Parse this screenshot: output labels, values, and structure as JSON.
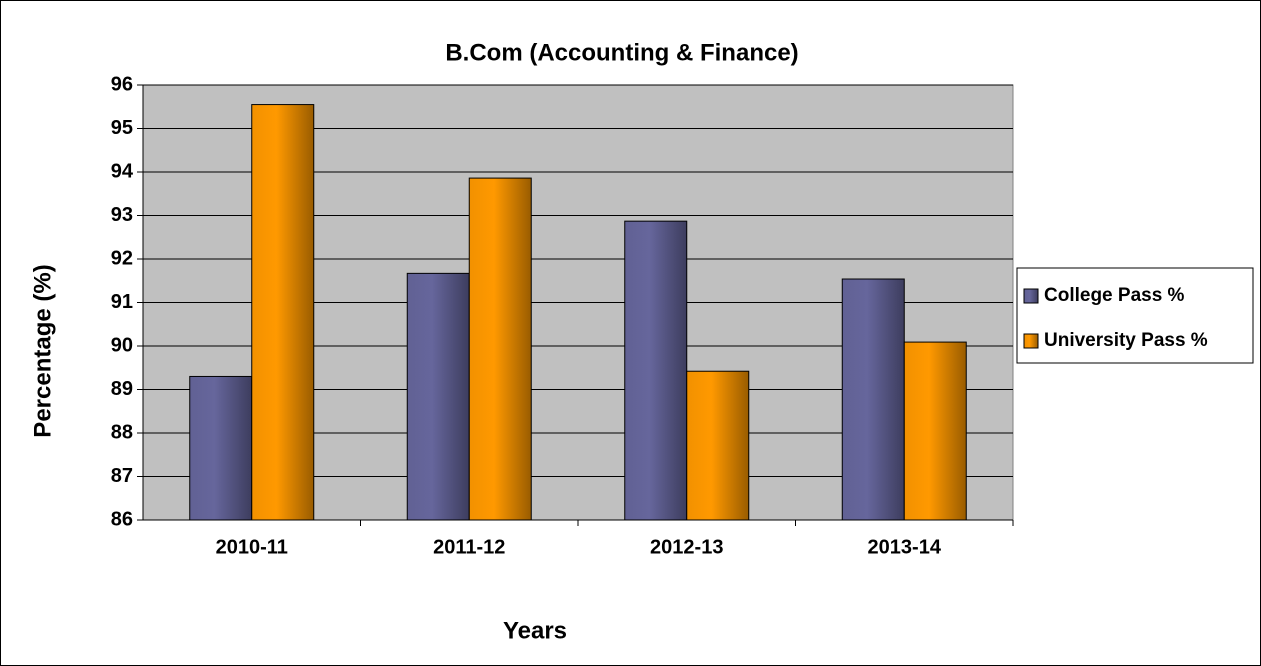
{
  "chart_data": {
    "type": "bar",
    "title": "B.Com (Accounting & Finance)",
    "x_label": "Years",
    "y_label": "Percentage (%)",
    "categories": [
      "2010-11",
      "2011-12",
      "2012-13",
      "2013-14"
    ],
    "series": [
      {
        "name": "College Pass %",
        "color": "#66669c",
        "values": [
          89.3,
          91.67,
          92.87,
          91.54
        ]
      },
      {
        "name": "University Pass %",
        "color": "#ff9900",
        "values": [
          95.55,
          93.86,
          89.42,
          90.09
        ]
      }
    ],
    "ylim": [
      86,
      96
    ],
    "yticks": [
      86,
      87,
      88,
      89,
      90,
      91,
      92,
      93,
      94,
      95,
      96
    ],
    "grid": true,
    "legend": "right"
  }
}
